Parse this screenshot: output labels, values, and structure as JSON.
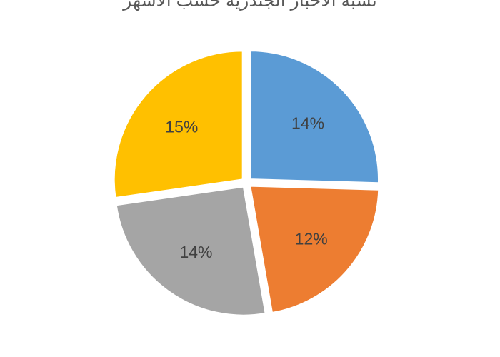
{
  "chart_data": {
    "type": "pie",
    "title": "نسبة الأخبار الجندرية حسب الأشهر",
    "slices": [
      {
        "label": "14%",
        "value": 14,
        "color": "#5B9BD5"
      },
      {
        "label": "12%",
        "value": 12,
        "color": "#ED7D31"
      },
      {
        "label": "14%",
        "value": 14,
        "color": "#A5A5A5"
      },
      {
        "label": "15%",
        "value": 15,
        "color": "#FFC000"
      }
    ],
    "legend": "none",
    "grid": false
  }
}
